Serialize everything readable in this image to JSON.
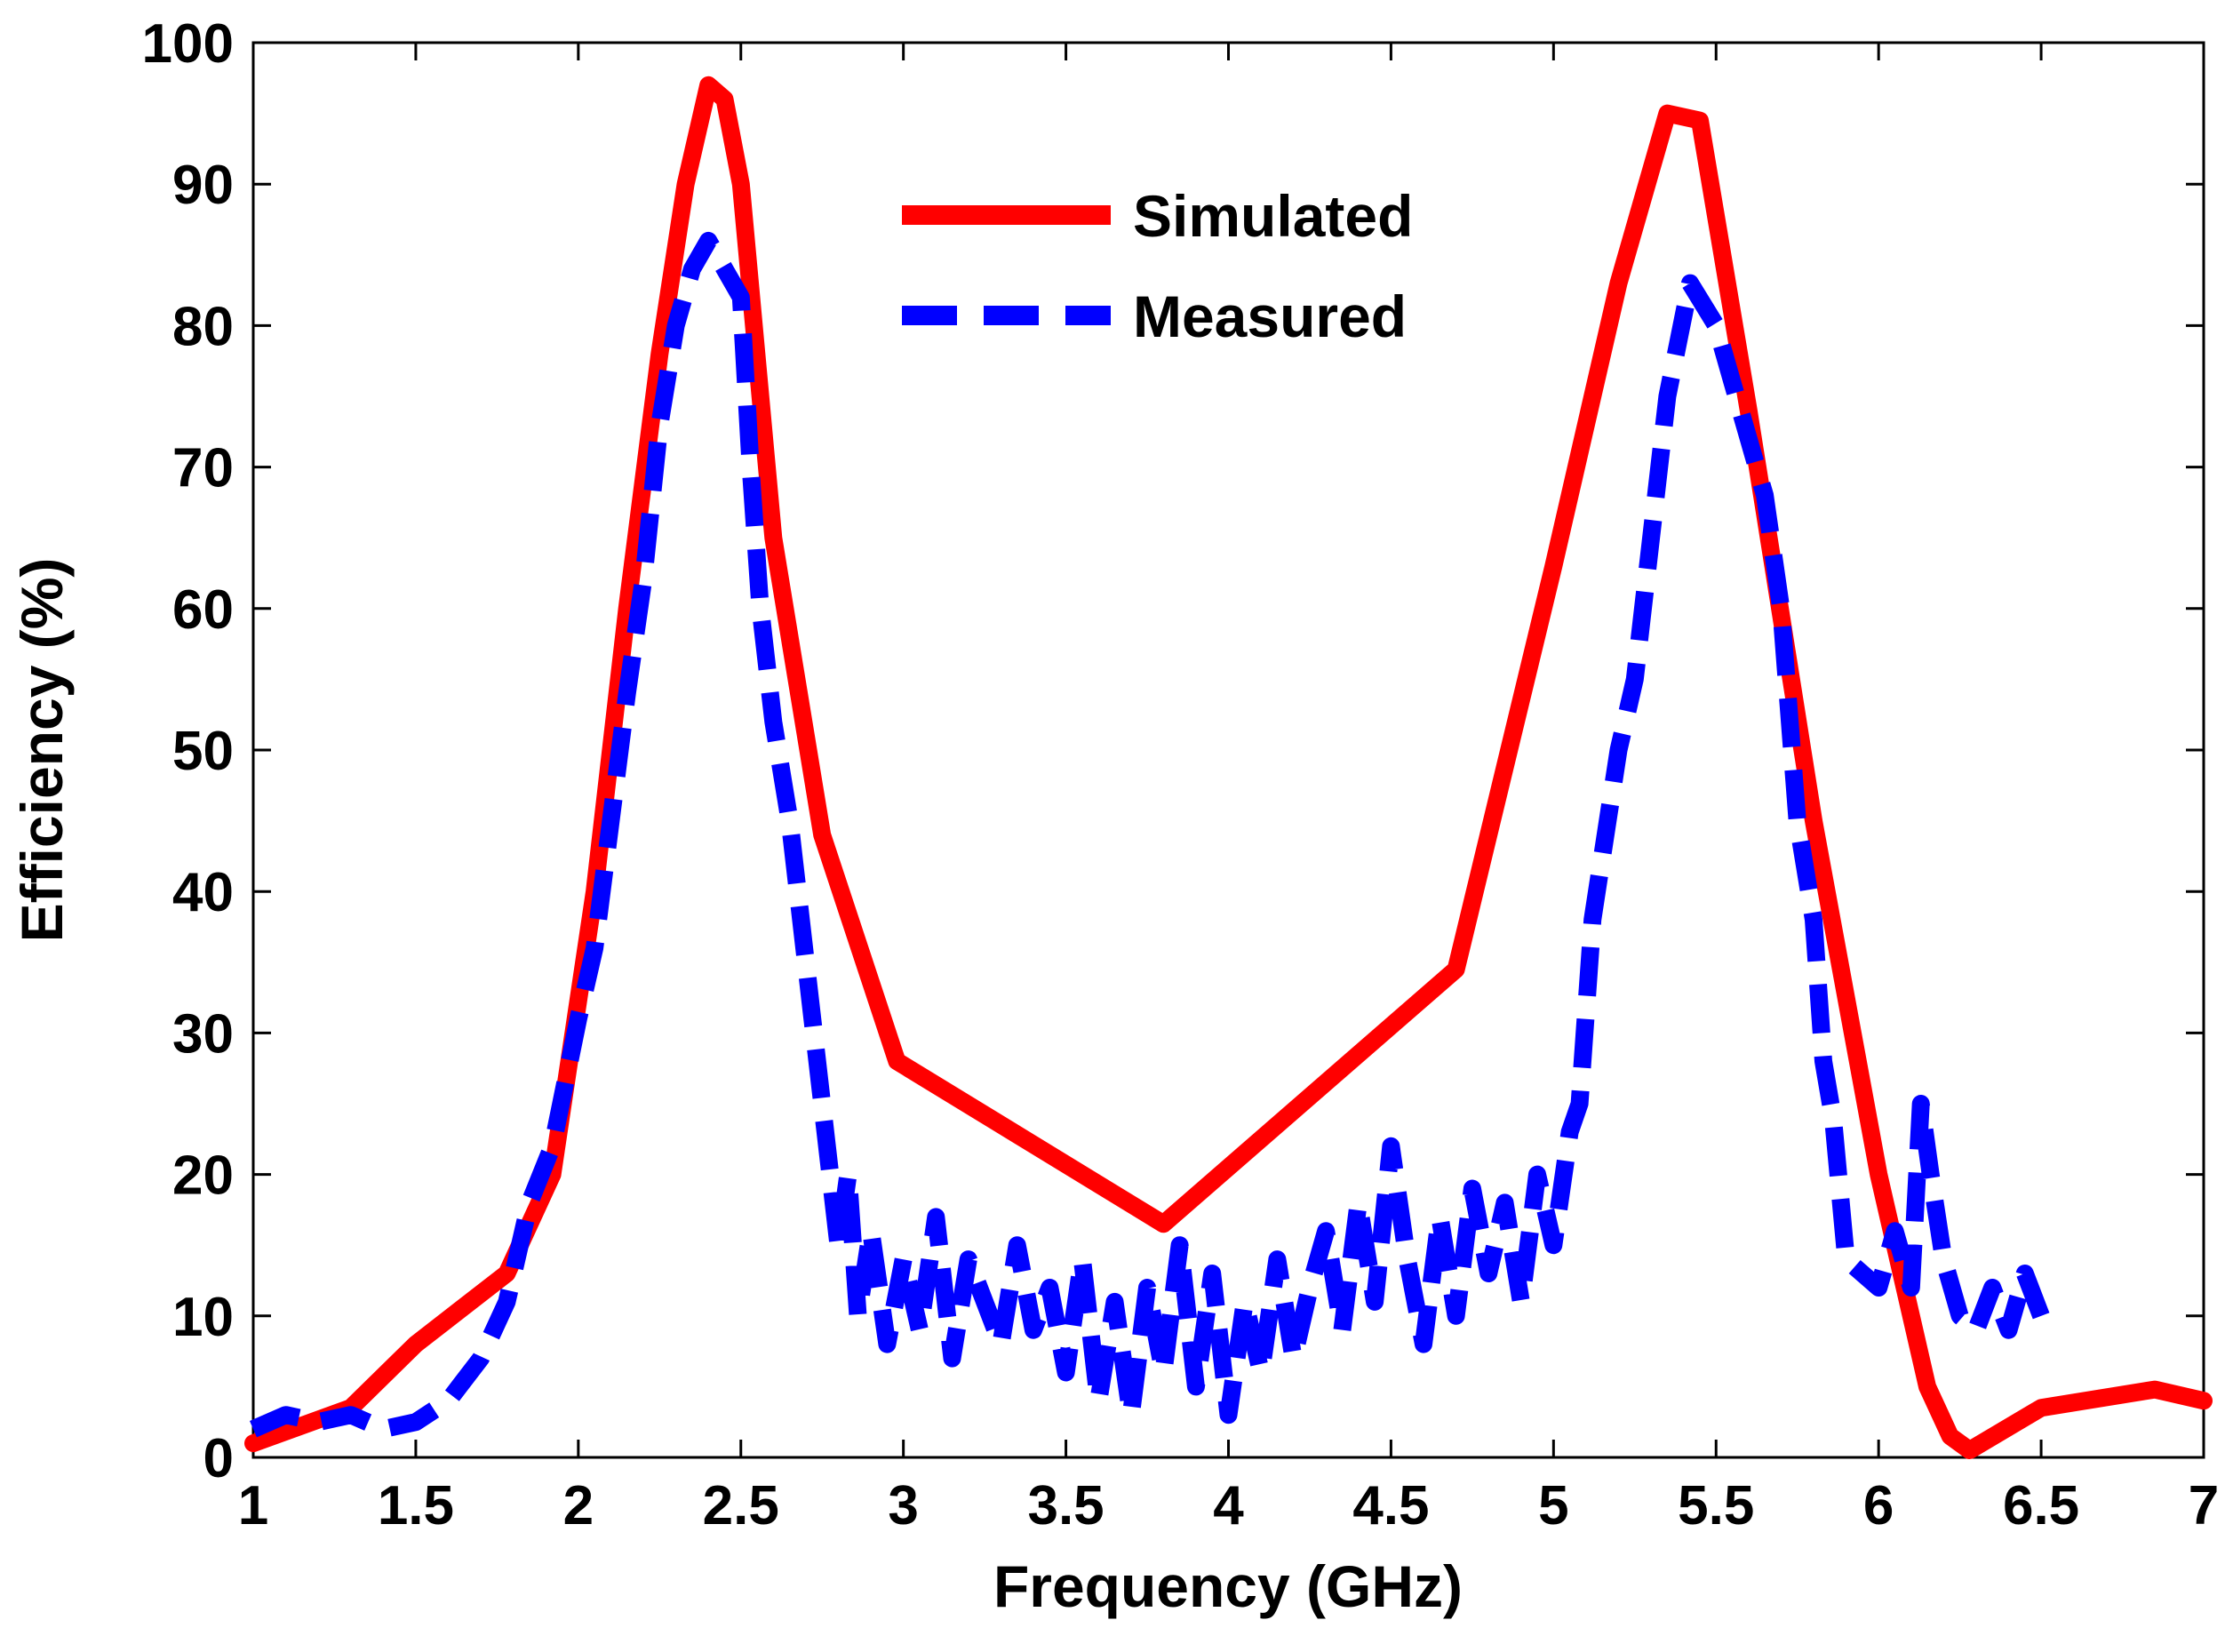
{
  "chart_data": {
    "type": "line",
    "title": "",
    "xlabel": "Frequency (GHz)",
    "ylabel": "Efficiency (%)",
    "xlim": [
      1,
      7
    ],
    "ylim": [
      0,
      100
    ],
    "xticks": [
      1,
      1.5,
      2,
      2.5,
      3,
      3.5,
      4,
      4.5,
      5,
      5.5,
      6,
      6.5,
      7
    ],
    "xtick_labels": [
      "1",
      "1.5",
      "2",
      "2.5",
      "3",
      "3.5",
      "4",
      "4.5",
      "5",
      "5.5",
      "6",
      "6.5",
      "7"
    ],
    "yticks": [
      0,
      10,
      20,
      30,
      40,
      50,
      60,
      70,
      80,
      90,
      100
    ],
    "ytick_labels": [
      "0",
      "10",
      "20",
      "30",
      "40",
      "50",
      "60",
      "70",
      "80",
      "90",
      "100"
    ],
    "grid": false,
    "legend_position": "top-center",
    "series": [
      {
        "name": "Simulated",
        "color": "#ff0000",
        "style": "solid",
        "x": [
          1.0,
          1.3,
          1.5,
          1.78,
          1.92,
          2.05,
          2.15,
          2.25,
          2.33,
          2.4,
          2.45,
          2.5,
          2.6,
          2.75,
          2.98,
          3.8,
          4.7,
          5.0,
          5.2,
          5.35,
          5.45,
          5.6,
          5.8,
          6.0,
          6.15,
          6.22,
          6.28,
          6.5,
          6.85,
          7.0
        ],
        "y": [
          1.0,
          3.5,
          8.0,
          13.0,
          20.0,
          40.0,
          60.0,
          78.0,
          90.0,
          97.0,
          96.0,
          90.0,
          65.0,
          44.0,
          28.0,
          16.5,
          34.5,
          63.0,
          83.0,
          95.0,
          94.5,
          74.0,
          45.0,
          20.0,
          5.0,
          1.5,
          0.5,
          3.5,
          4.8,
          4.0
        ]
      },
      {
        "name": "Measured",
        "color": "#0000ff",
        "style": "dashed",
        "x": [
          1.0,
          1.1,
          1.2,
          1.3,
          1.4,
          1.5,
          1.6,
          1.7,
          1.78,
          1.85,
          1.92,
          2.0,
          2.05,
          2.1,
          2.15,
          2.2,
          2.25,
          2.3,
          2.35,
          2.4,
          2.45,
          2.5,
          2.53,
          2.56,
          2.6,
          2.65,
          2.7,
          2.75,
          2.8,
          2.83,
          2.86,
          2.9,
          2.95,
          3.0,
          3.05,
          3.1,
          3.15,
          3.2,
          3.25,
          3.3,
          3.35,
          3.4,
          3.45,
          3.5,
          3.55,
          3.6,
          3.65,
          3.7,
          3.75,
          3.8,
          3.85,
          3.9,
          3.95,
          4.0,
          4.05,
          4.1,
          4.15,
          4.2,
          4.25,
          4.3,
          4.35,
          4.4,
          4.45,
          4.5,
          4.55,
          4.6,
          4.65,
          4.7,
          4.75,
          4.8,
          4.85,
          4.9,
          4.95,
          5.0,
          5.05,
          5.08,
          5.12,
          5.2,
          5.25,
          5.3,
          5.35,
          5.42,
          5.5,
          5.55,
          5.6,
          5.65,
          5.7,
          5.75,
          5.8,
          5.83,
          5.86,
          5.9,
          6.0,
          6.05,
          6.1,
          6.13,
          6.16,
          6.2,
          6.25,
          6.3,
          6.35,
          6.4,
          6.45,
          6.5
        ],
        "y": [
          2.0,
          3.0,
          2.5,
          3.0,
          2.0,
          2.5,
          4.0,
          7.0,
          11.0,
          18.0,
          22.0,
          31.0,
          36.0,
          45.0,
          54.0,
          62.0,
          73.0,
          80.0,
          84.0,
          86.0,
          84.0,
          82.0,
          70.0,
          60.0,
          52.0,
          45.0,
          35.0,
          25.0,
          15.0,
          20.0,
          10.0,
          16.0,
          8.0,
          14.0,
          9.0,
          17.0,
          7.0,
          14.0,
          11.0,
          8.0,
          15.0,
          9.0,
          12.0,
          6.0,
          14.0,
          4.0,
          11.0,
          3.0,
          12.0,
          6.0,
          15.0,
          5.0,
          13.0,
          3.0,
          11.0,
          6.0,
          14.0,
          7.0,
          12.0,
          16.0,
          9.0,
          18.0,
          11.0,
          22.0,
          14.0,
          8.0,
          17.0,
          10.0,
          19.0,
          13.0,
          18.0,
          11.0,
          20.0,
          15.0,
          23.0,
          25.0,
          38.0,
          50.0,
          55.0,
          65.0,
          75.0,
          83.0,
          80.0,
          76.0,
          72.0,
          68.0,
          60.0,
          45.0,
          38.0,
          28.0,
          24.0,
          14.0,
          12.0,
          16.0,
          12.0,
          25.0,
          20.0,
          14.0,
          10.0,
          9.0,
          12.0,
          9.0,
          13.0,
          10.0
        ]
      }
    ]
  }
}
